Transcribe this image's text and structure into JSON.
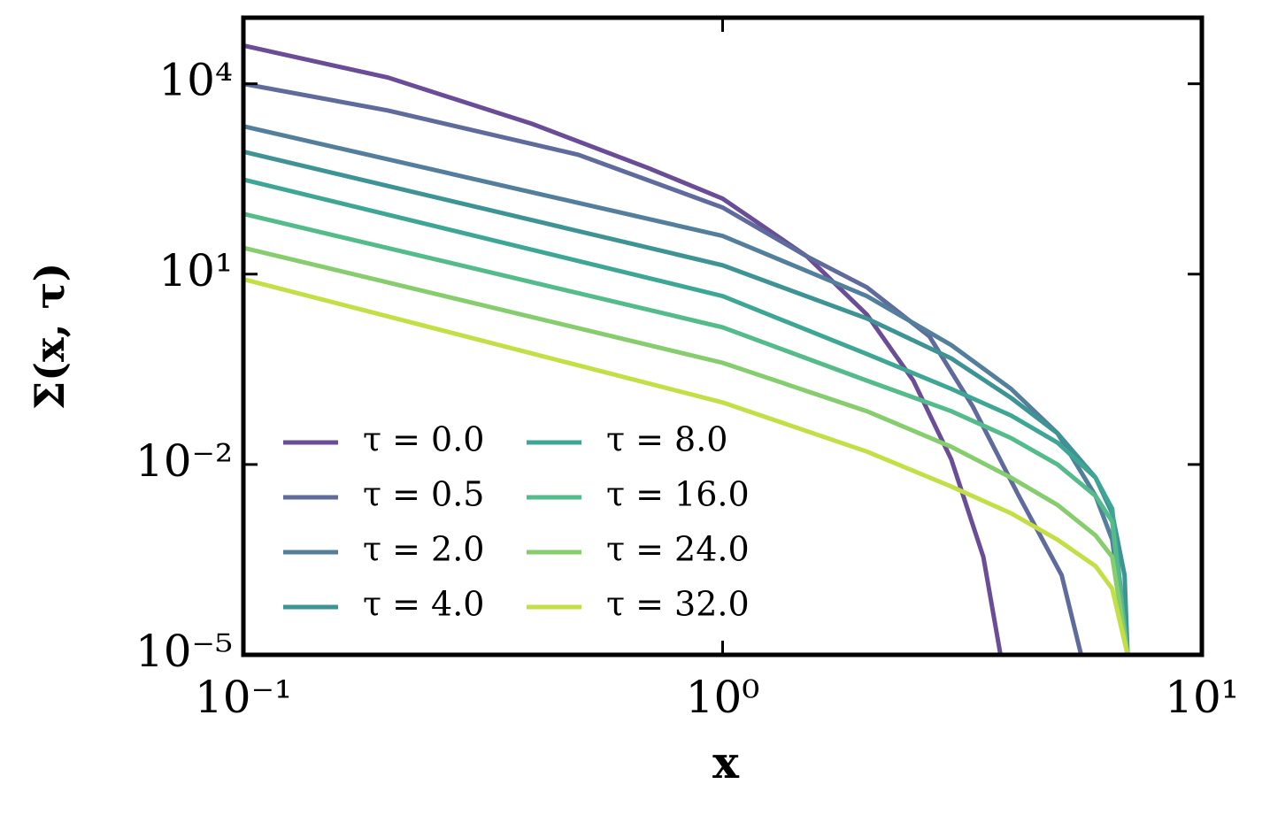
{
  "chart_data": {
    "type": "line",
    "xlabel": "x",
    "ylabel": "Σ(x, τ)",
    "xscale": "log",
    "yscale": "log",
    "xlim": [
      0.1,
      10
    ],
    "ylim": [
      1e-05,
      110000
    ],
    "xticks": [
      {
        "value": 0.1,
        "label": "10⁻¹"
      },
      {
        "value": 1,
        "label": "10⁰"
      },
      {
        "value": 10,
        "label": "10¹"
      }
    ],
    "yticks": [
      {
        "value": 1e-05,
        "label": "10⁻⁵"
      },
      {
        "value": 0.01,
        "label": "10⁻²"
      },
      {
        "value": 10,
        "label": "10¹"
      },
      {
        "value": 10000,
        "label": "10⁴"
      }
    ],
    "legend": "lower left",
    "legend_columns": 2,
    "series": [
      {
        "name": "τ = 0.0",
        "color": "#6a4d96",
        "x": [
          0.1,
          0.2,
          0.4,
          0.7,
          1,
          1.5,
          2,
          2.5,
          3,
          3.5,
          3.8
        ],
        "values": [
          40000,
          12600,
          2340,
          470,
          155,
          19,
          2.3,
          0.21,
          0.012,
          0.00035,
          1e-05
        ]
      },
      {
        "name": "τ = 0.5",
        "color": "#5e6b9c",
        "x": [
          0.1,
          0.2,
          0.5,
          1,
          1.5,
          2,
          2.7,
          3.33,
          4.15,
          5.1,
          5.6
        ],
        "values": [
          10000,
          3800,
          760,
          112,
          19,
          6.2,
          1.05,
          0.081,
          0.0032,
          0.00018,
          1e-05
        ]
      },
      {
        "name": "τ = 2.0",
        "color": "#537f9c",
        "x": [
          0.1,
          1,
          2,
          3,
          4,
          5,
          6,
          6.5,
          7
        ],
        "values": [
          2140,
          40,
          4.5,
          0.76,
          0.155,
          0.031,
          0.0032,
          0.00065,
          1e-05
        ]
      },
      {
        "name": "τ = 4.0",
        "color": "#3e9395",
        "x": [
          0.1,
          1,
          2,
          3,
          4,
          5,
          6,
          6.5,
          6.9,
          7
        ],
        "values": [
          850,
          13.8,
          2.0,
          0.47,
          0.112,
          0.031,
          0.0062,
          0.0017,
          0.00018,
          1e-05
        ]
      },
      {
        "name": "τ = 8.0",
        "color": "#3ea695",
        "x": [
          0.1,
          1,
          2,
          3,
          4,
          5,
          6,
          6.5,
          7
        ],
        "values": [
          309,
          4.5,
          0.55,
          0.155,
          0.059,
          0.022,
          0.0062,
          0.002,
          1e-05
        ]
      },
      {
        "name": "τ = 16.0",
        "color": "#54bb8a",
        "x": [
          0.1,
          1,
          2,
          3,
          4,
          5,
          6,
          6.5,
          7
        ],
        "values": [
          89,
          1.45,
          0.21,
          0.069,
          0.026,
          0.01,
          0.0032,
          0.00126,
          1e-05
        ]
      },
      {
        "name": "τ = 24.0",
        "color": "#86cd6d",
        "x": [
          0.1,
          1,
          2,
          3,
          4,
          5,
          6,
          6.5,
          7
        ],
        "values": [
          26,
          0.4,
          0.069,
          0.019,
          0.0062,
          0.0023,
          0.00076,
          0.00035,
          1e-05
        ]
      },
      {
        "name": "τ = 32.0",
        "color": "#c2df45",
        "x": [
          0.1,
          1,
          2,
          3,
          4,
          5,
          6,
          6.5,
          7
        ],
        "values": [
          8.3,
          0.095,
          0.016,
          0.0045,
          0.0017,
          0.00065,
          0.00025,
          0.00011,
          1e-05
        ]
      }
    ]
  }
}
